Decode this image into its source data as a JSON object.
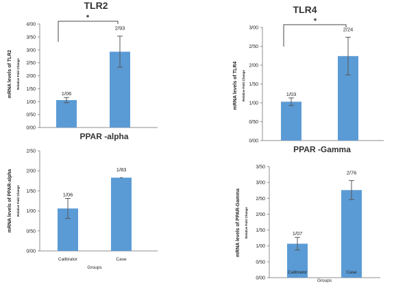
{
  "chart_data": [
    {
      "type": "bar",
      "title": "TLR2",
      "ylabel": "mRNA levels of TLR2",
      "ysublabel": "Relative Fold Change",
      "xlabel": "",
      "categories": [
        "",
        ""
      ],
      "values": [
        1.06,
        2.93
      ],
      "errors": [
        0.1,
        0.6
      ],
      "data_labels": [
        "1/06",
        "2/93"
      ],
      "ylim": [
        0,
        4
      ],
      "yticks": [
        "0/00",
        "0/50",
        "1/00",
        "1/50",
        "2/00",
        "2/50",
        "3/00",
        "3/50",
        "4/00"
      ],
      "significance": "*",
      "grid": false,
      "bar_color": "#5b9bd5"
    },
    {
      "type": "bar",
      "title": "TLR4",
      "ylabel": "mRNA levels of TLR4",
      "ysublabel": "Relative Fold Change",
      "xlabel": "",
      "categories": [
        "",
        ""
      ],
      "values": [
        1.03,
        2.24
      ],
      "errors": [
        0.1,
        0.5
      ],
      "data_labels": [
        "1/03",
        "2/24"
      ],
      "ylim": [
        0,
        3
      ],
      "yticks": [
        "0/00",
        "0/50",
        "1/00",
        "1/50",
        "2/00",
        "2/50",
        "3/00"
      ],
      "significance": "*",
      "grid": false,
      "bar_color": "#5b9bd5"
    },
    {
      "type": "bar",
      "title": "PPAR -alpha",
      "ylabel": "mRNA levels of PPAR-alpha",
      "ysublabel": "Relative Fold Change",
      "xlabel": "Groups",
      "categories": [
        "Calibrator",
        "Case"
      ],
      "values": [
        1.06,
        1.83
      ],
      "errors": [
        0.25,
        0.0
      ],
      "data_labels": [
        "1/06",
        "1/83"
      ],
      "ylim": [
        0,
        2.5
      ],
      "yticks": [
        "0/00",
        "0/50",
        "1/00",
        "1/50",
        "2/00",
        "2/50"
      ],
      "grid": false,
      "bar_color": "#5b9bd5"
    },
    {
      "type": "bar",
      "title": "PPAR -Gamma",
      "ylabel": "mRNA levels of PPAR-Gamma",
      "ysublabel": "Relative Fold Change",
      "xlabel": "Groups",
      "categories": [
        "Calibrator",
        "Case"
      ],
      "values": [
        1.07,
        2.76
      ],
      "errors": [
        0.2,
        0.3
      ],
      "data_labels": [
        "1/07",
        "2/76"
      ],
      "ylim": [
        0,
        3.5
      ],
      "yticks": [
        "0/00",
        "0/50",
        "1/00",
        "1/50",
        "2/00",
        "2/50",
        "3/00",
        "3/50"
      ],
      "grid": false,
      "bar_color": "#5b9bd5"
    }
  ]
}
